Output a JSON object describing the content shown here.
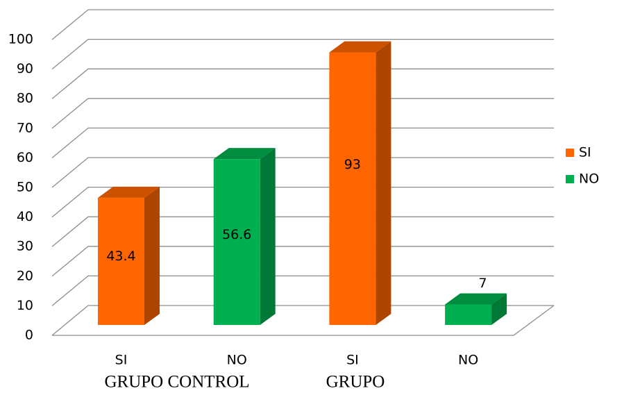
{
  "chart_data": {
    "type": "bar3d",
    "categories": [
      "SI",
      "NO",
      "SI",
      "NO"
    ],
    "groups": [
      "GRUPO CONTROL",
      "GRUPO"
    ],
    "series": [
      {
        "name": "SI",
        "color": "#ff6600",
        "values": [
          43.4,
          null,
          93,
          null
        ]
      },
      {
        "name": "NO",
        "color": "#00b050",
        "values": [
          null,
          56.6,
          null,
          7
        ]
      }
    ],
    "ylim": [
      0,
      100
    ],
    "yticks": [
      0,
      10,
      20,
      30,
      40,
      50,
      60,
      70,
      80,
      90,
      100
    ],
    "grid": true,
    "legend": "right"
  }
}
